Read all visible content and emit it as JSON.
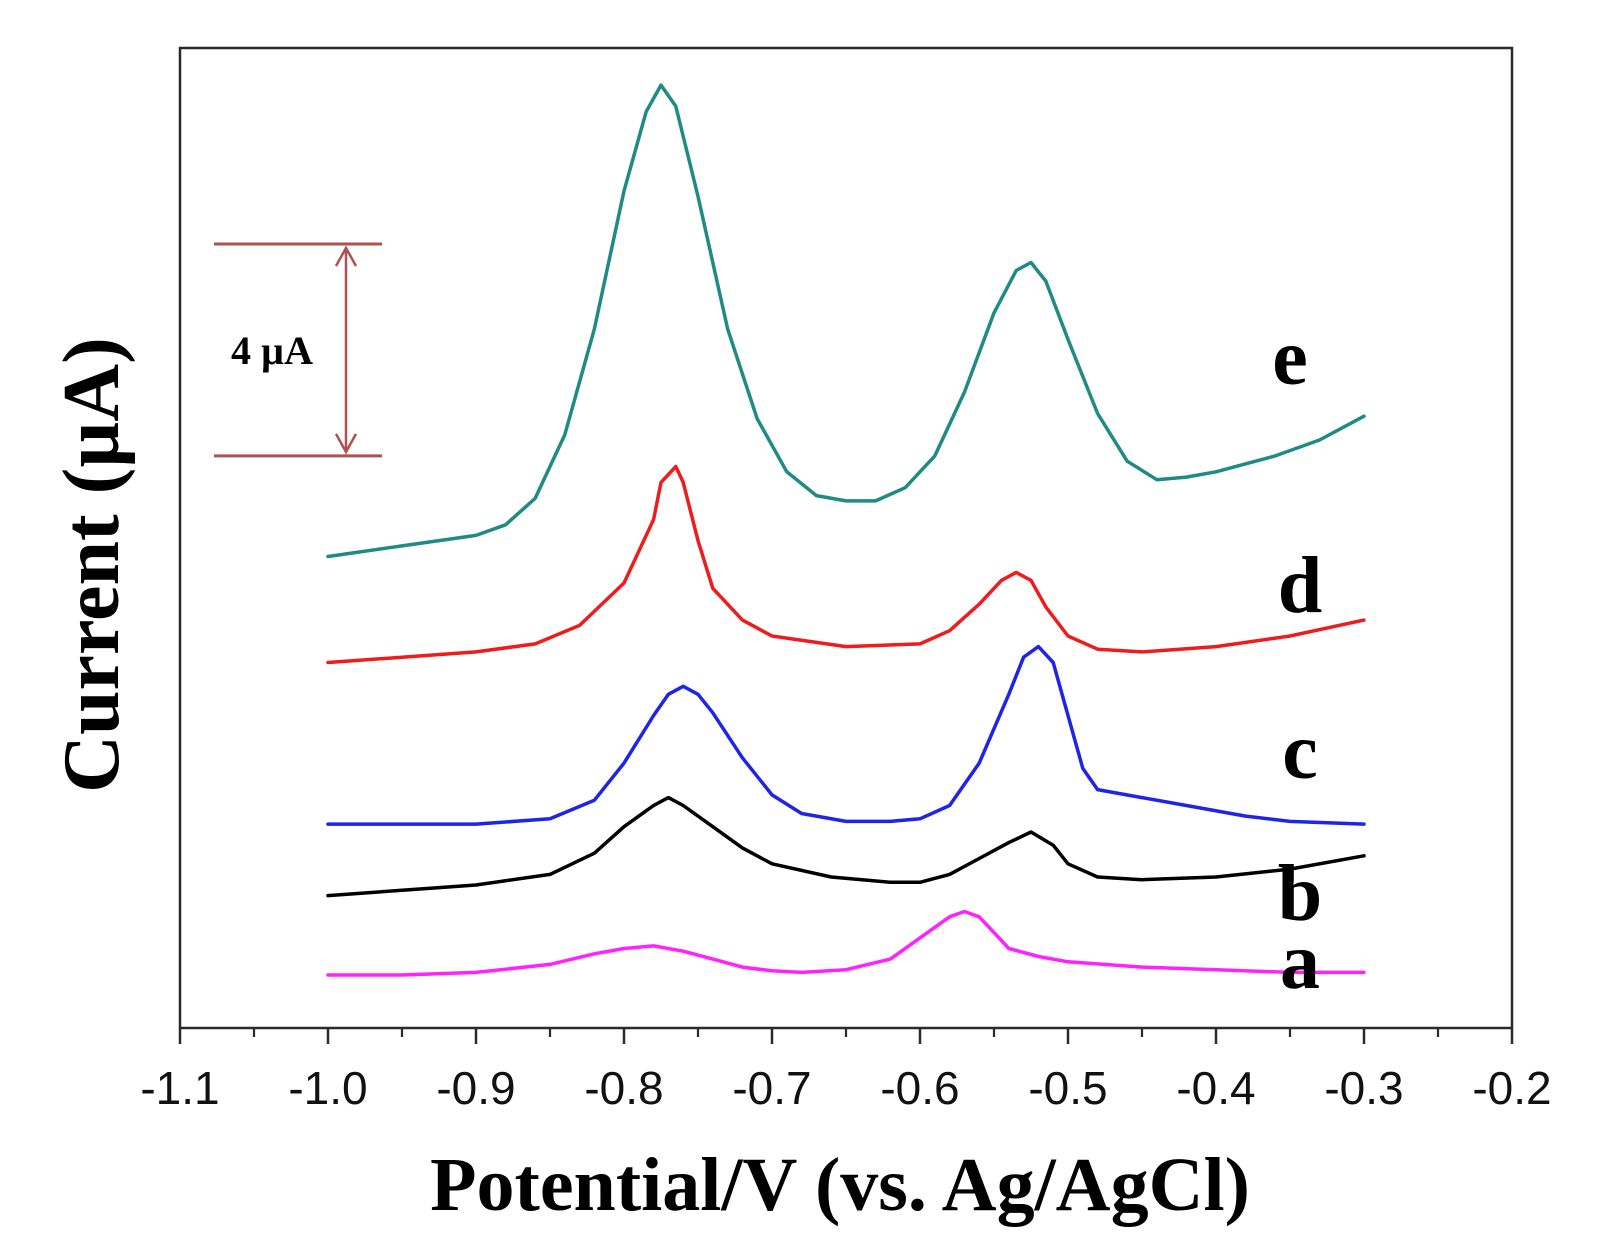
{
  "chart_data": {
    "type": "line",
    "title": "",
    "xlabel": "Potential/V (vs. Ag/AgCl)",
    "ylabel": "Current (µA)",
    "xlim": [
      -1.1,
      -0.2
    ],
    "xticks": [
      "-1.1",
      "-1.0",
      "-0.9",
      "-0.8",
      "-0.7",
      "-0.6",
      "-0.5",
      "-0.4",
      "-0.3",
      "-0.2"
    ],
    "xtick_values": [
      -1.1,
      -1.0,
      -0.9,
      -0.8,
      -0.7,
      -0.6,
      -0.5,
      -0.4,
      -0.3,
      -0.2
    ],
    "ylim": [
      0,
      18.5
    ],
    "yticks_shown": false,
    "scale_bar": {
      "label": "4 µA",
      "value": 4,
      "from": 10.8,
      "to": 14.8,
      "color": "#b05050"
    },
    "series": [
      {
        "name": "a",
        "color": "#ff22ff",
        "points": [
          [
            -1.0,
            1.0
          ],
          [
            -0.95,
            1.0
          ],
          [
            -0.9,
            1.05
          ],
          [
            -0.85,
            1.2
          ],
          [
            -0.82,
            1.4
          ],
          [
            -0.8,
            1.5
          ],
          [
            -0.78,
            1.55
          ],
          [
            -0.76,
            1.45
          ],
          [
            -0.74,
            1.3
          ],
          [
            -0.72,
            1.15
          ],
          [
            -0.7,
            1.08
          ],
          [
            -0.68,
            1.05
          ],
          [
            -0.65,
            1.1
          ],
          [
            -0.62,
            1.3
          ],
          [
            -0.6,
            1.7
          ],
          [
            -0.58,
            2.1
          ],
          [
            -0.57,
            2.2
          ],
          [
            -0.56,
            2.1
          ],
          [
            -0.55,
            1.8
          ],
          [
            -0.54,
            1.5
          ],
          [
            -0.52,
            1.35
          ],
          [
            -0.5,
            1.25
          ],
          [
            -0.45,
            1.15
          ],
          [
            -0.4,
            1.1
          ],
          [
            -0.35,
            1.05
          ],
          [
            -0.3,
            1.05
          ]
        ]
      },
      {
        "name": "b",
        "color": "#000000",
        "points": [
          [
            -1.0,
            2.5
          ],
          [
            -0.95,
            2.6
          ],
          [
            -0.9,
            2.7
          ],
          [
            -0.85,
            2.9
          ],
          [
            -0.82,
            3.3
          ],
          [
            -0.8,
            3.8
          ],
          [
            -0.78,
            4.2
          ],
          [
            -0.77,
            4.35
          ],
          [
            -0.76,
            4.2
          ],
          [
            -0.74,
            3.8
          ],
          [
            -0.72,
            3.4
          ],
          [
            -0.7,
            3.1
          ],
          [
            -0.66,
            2.85
          ],
          [
            -0.62,
            2.75
          ],
          [
            -0.6,
            2.75
          ],
          [
            -0.58,
            2.9
          ],
          [
            -0.56,
            3.2
          ],
          [
            -0.54,
            3.5
          ],
          [
            -0.525,
            3.7
          ],
          [
            -0.51,
            3.45
          ],
          [
            -0.5,
            3.1
          ],
          [
            -0.48,
            2.85
          ],
          [
            -0.45,
            2.8
          ],
          [
            -0.4,
            2.85
          ],
          [
            -0.35,
            3.0
          ],
          [
            -0.3,
            3.25
          ]
        ]
      },
      {
        "name": "c",
        "color": "#1f24e6",
        "points": [
          [
            -1.0,
            3.85
          ],
          [
            -0.95,
            3.85
          ],
          [
            -0.9,
            3.85
          ],
          [
            -0.85,
            3.95
          ],
          [
            -0.82,
            4.3
          ],
          [
            -0.8,
            5.0
          ],
          [
            -0.78,
            5.9
          ],
          [
            -0.77,
            6.3
          ],
          [
            -0.76,
            6.45
          ],
          [
            -0.75,
            6.3
          ],
          [
            -0.74,
            5.95
          ],
          [
            -0.72,
            5.1
          ],
          [
            -0.7,
            4.4
          ],
          [
            -0.68,
            4.05
          ],
          [
            -0.65,
            3.9
          ],
          [
            -0.62,
            3.9
          ],
          [
            -0.6,
            3.95
          ],
          [
            -0.58,
            4.2
          ],
          [
            -0.56,
            5.0
          ],
          [
            -0.54,
            6.3
          ],
          [
            -0.53,
            7.0
          ],
          [
            -0.52,
            7.2
          ],
          [
            -0.51,
            6.9
          ],
          [
            -0.5,
            5.9
          ],
          [
            -0.49,
            4.9
          ],
          [
            -0.48,
            4.5
          ],
          [
            -0.45,
            4.35
          ],
          [
            -0.42,
            4.2
          ],
          [
            -0.38,
            4.0
          ],
          [
            -0.35,
            3.9
          ],
          [
            -0.3,
            3.85
          ]
        ]
      },
      {
        "name": "d",
        "color": "#ee1c1c",
        "points": [
          [
            -1.0,
            6.9
          ],
          [
            -0.95,
            7.0
          ],
          [
            -0.9,
            7.1
          ],
          [
            -0.86,
            7.25
          ],
          [
            -0.83,
            7.6
          ],
          [
            -0.8,
            8.4
          ],
          [
            -0.78,
            9.6
          ],
          [
            -0.775,
            10.3
          ],
          [
            -0.765,
            10.6
          ],
          [
            -0.76,
            10.3
          ],
          [
            -0.75,
            9.2
          ],
          [
            -0.74,
            8.3
          ],
          [
            -0.72,
            7.7
          ],
          [
            -0.7,
            7.4
          ],
          [
            -0.65,
            7.2
          ],
          [
            -0.6,
            7.25
          ],
          [
            -0.58,
            7.5
          ],
          [
            -0.56,
            8.0
          ],
          [
            -0.545,
            8.45
          ],
          [
            -0.535,
            8.6
          ],
          [
            -0.525,
            8.45
          ],
          [
            -0.515,
            7.95
          ],
          [
            -0.5,
            7.4
          ],
          [
            -0.48,
            7.15
          ],
          [
            -0.45,
            7.1
          ],
          [
            -0.4,
            7.2
          ],
          [
            -0.35,
            7.4
          ],
          [
            -0.3,
            7.7
          ]
        ]
      },
      {
        "name": "e",
        "color": "#1f8b83",
        "points": [
          [
            -1.0,
            8.9
          ],
          [
            -0.95,
            9.1
          ],
          [
            -0.9,
            9.3
          ],
          [
            -0.88,
            9.5
          ],
          [
            -0.86,
            10.0
          ],
          [
            -0.84,
            11.2
          ],
          [
            -0.82,
            13.2
          ],
          [
            -0.8,
            15.8
          ],
          [
            -0.785,
            17.3
          ],
          [
            -0.775,
            17.8
          ],
          [
            -0.765,
            17.4
          ],
          [
            -0.75,
            15.7
          ],
          [
            -0.73,
            13.2
          ],
          [
            -0.71,
            11.5
          ],
          [
            -0.69,
            10.5
          ],
          [
            -0.67,
            10.05
          ],
          [
            -0.65,
            9.95
          ],
          [
            -0.63,
            9.95
          ],
          [
            -0.61,
            10.2
          ],
          [
            -0.59,
            10.8
          ],
          [
            -0.57,
            12.0
          ],
          [
            -0.55,
            13.5
          ],
          [
            -0.535,
            14.3
          ],
          [
            -0.525,
            14.45
          ],
          [
            -0.515,
            14.1
          ],
          [
            -0.5,
            13.0
          ],
          [
            -0.48,
            11.6
          ],
          [
            -0.46,
            10.7
          ],
          [
            -0.44,
            10.35
          ],
          [
            -0.42,
            10.4
          ],
          [
            -0.4,
            10.5
          ],
          [
            -0.36,
            10.8
          ],
          [
            -0.33,
            11.1
          ],
          [
            -0.3,
            11.55
          ]
        ]
      }
    ]
  }
}
